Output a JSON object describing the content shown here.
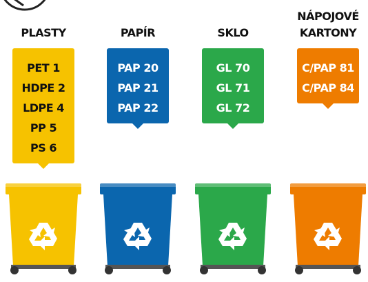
{
  "columns": [
    {
      "title": "PLASTY",
      "codes": [
        "PET 1",
        "HDPE 2",
        "LDPE 4",
        "PP 5",
        "PS 6"
      ]
    },
    {
      "title": "PAPÍR",
      "codes": [
        "PAP 20",
        "PAP 21",
        "PAP 22"
      ]
    },
    {
      "title": "SKLO",
      "codes": [
        "GL 70",
        "GL 71",
        "GL 72"
      ]
    },
    {
      "title": "NÁPOJOVÉ KARTONY",
      "codes": [
        "C/PAP 81",
        "C/PAP 84"
      ]
    }
  ]
}
